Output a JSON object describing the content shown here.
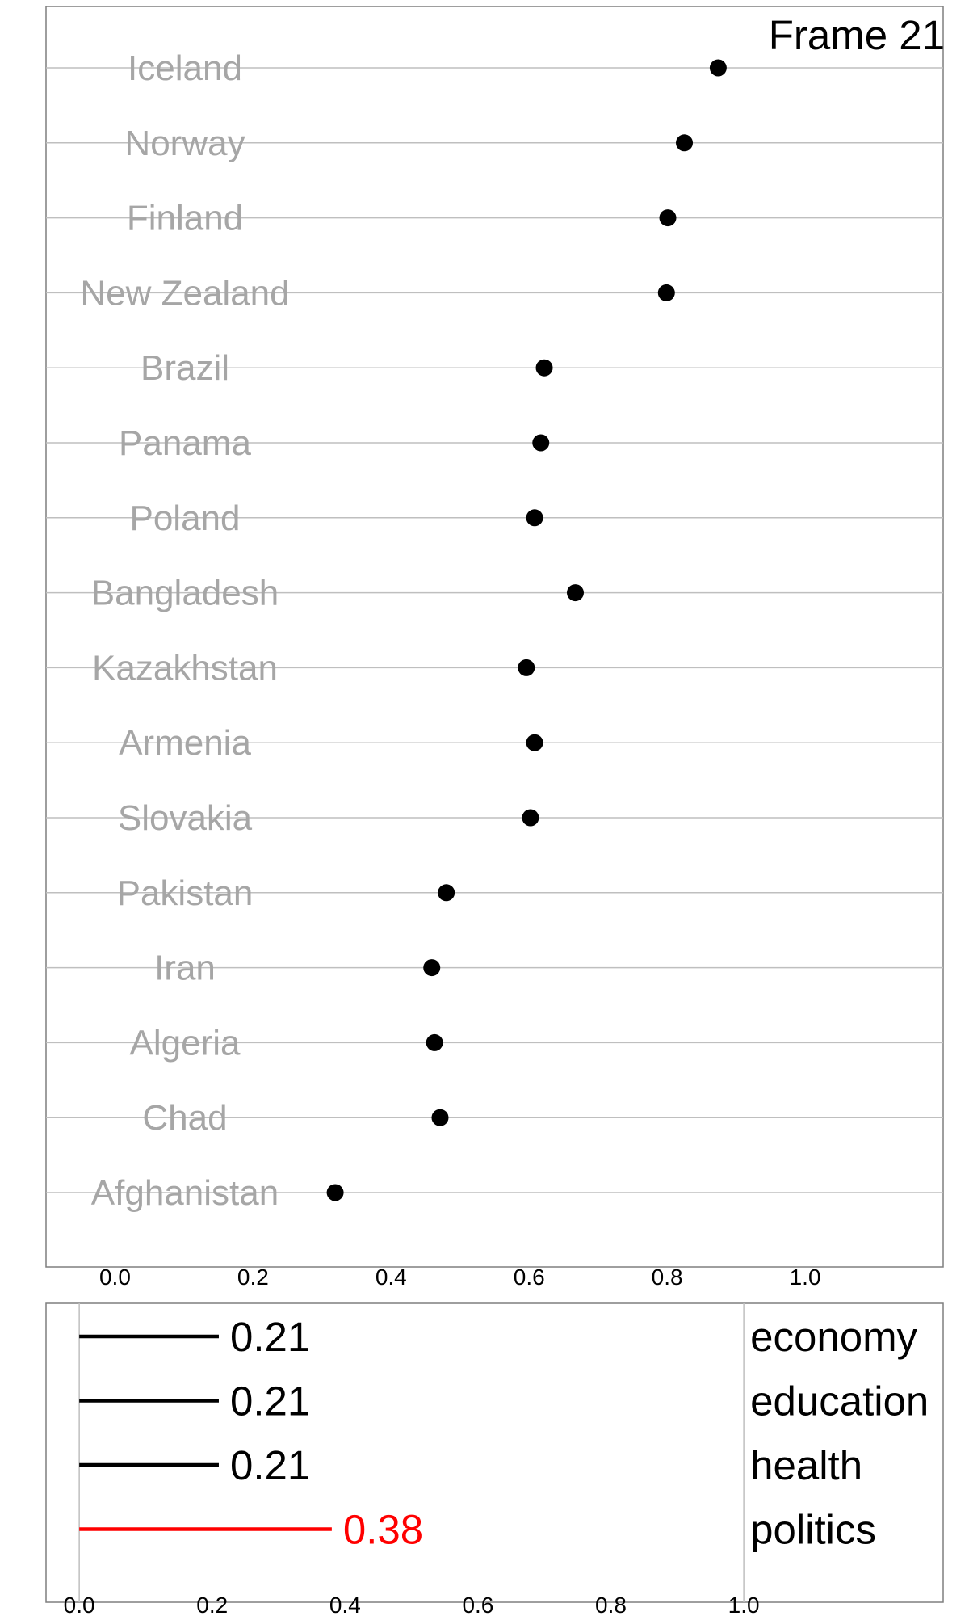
{
  "frame_label": "Frame 21",
  "chart_data": [
    {
      "type": "scatter",
      "subtype": "dot-plot",
      "title": "",
      "xlabel": "",
      "ylabel": "",
      "xlim": [
        -0.1,
        1.2
      ],
      "xticks": [
        0.0,
        0.2,
        0.4,
        0.6,
        0.8,
        1.0
      ],
      "xtick_labels": [
        "0.0",
        "0.2",
        "0.4",
        "0.6",
        "0.8",
        "1.0"
      ],
      "grid": "horizontal",
      "label_color": "#a6a6a6",
      "point_color": "#000000",
      "categories": [
        "Iceland",
        "Norway",
        "Finland",
        "New Zealand",
        "Brazil",
        "Panama",
        "Poland",
        "Bangladesh",
        "Kazakhstan",
        "Armenia",
        "Slovakia",
        "Pakistan",
        "Iran",
        "Algeria",
        "Chad",
        "Afghanistan"
      ],
      "values": [
        0.874,
        0.825,
        0.801,
        0.799,
        0.622,
        0.617,
        0.608,
        0.667,
        0.596,
        0.608,
        0.602,
        0.48,
        0.459,
        0.463,
        0.471,
        0.319
      ]
    },
    {
      "type": "bar",
      "orientation": "horizontal",
      "title": "",
      "xlim": [
        -0.05,
        1.3
      ],
      "xticks": [
        0.0,
        0.2,
        0.4,
        0.6,
        0.8,
        1.0
      ],
      "xtick_labels": [
        "0.0",
        "0.2",
        "0.4",
        "0.6",
        "0.8",
        "1.0"
      ],
      "reference_line": 1.0,
      "categories": [
        "economy",
        "education",
        "health",
        "politics"
      ],
      "values": [
        0.21,
        0.21,
        0.21,
        0.38
      ],
      "value_labels": [
        "0.21",
        "0.21",
        "0.21",
        "0.38"
      ],
      "highlight_index": 3,
      "bar_color": "#000000",
      "highlight_color": "#ff0000"
    }
  ]
}
